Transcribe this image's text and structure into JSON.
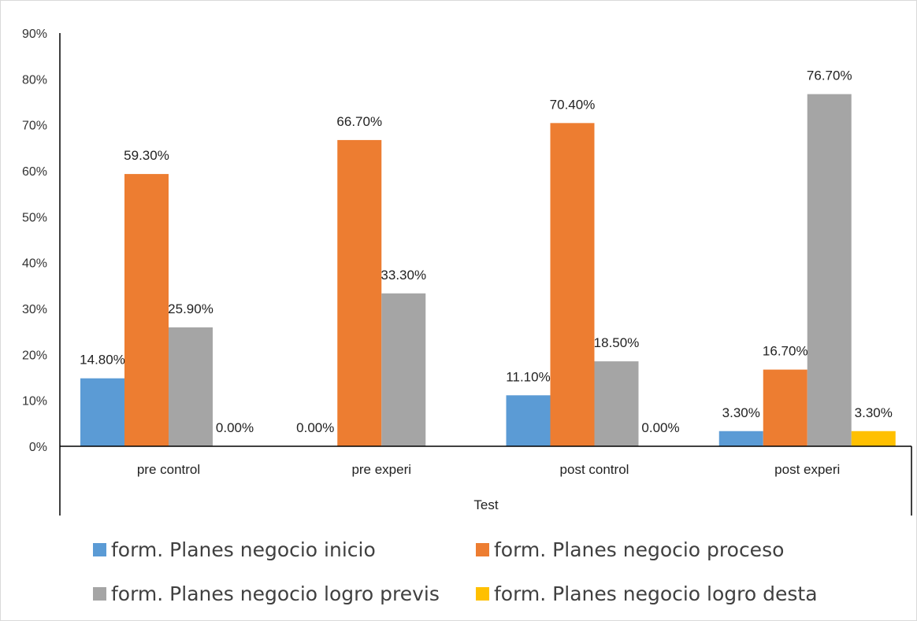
{
  "chart_data": {
    "type": "bar",
    "categories": [
      "pre control",
      "pre experi",
      "post control",
      "post experi"
    ],
    "series": [
      {
        "name": "form. Planes negocio inicio",
        "color": "#5b9bd5",
        "values": [
          14.8,
          0.0,
          11.1,
          3.3
        ],
        "labels": [
          "14.80%",
          "0.00%",
          "11.10%",
          "3.30%"
        ]
      },
      {
        "name": "form. Planes negocio proceso",
        "color": "#ed7d31",
        "values": [
          59.3,
          66.7,
          70.4,
          16.7
        ],
        "labels": [
          "59.30%",
          "66.70%",
          "70.40%",
          "16.70%"
        ]
      },
      {
        "name": "form. Planes negocio logro previs",
        "color": "#a5a5a5",
        "values": [
          25.9,
          33.3,
          18.5,
          76.7
        ],
        "labels": [
          "25.90%",
          "33.30%",
          "18.50%",
          "76.70%"
        ]
      },
      {
        "name": "form. Planes negocio logro desta",
        "color": "#ffc000",
        "values": [
          0.0,
          0.0,
          0.0,
          3.3
        ],
        "labels": [
          "0.00%",
          "",
          "0.00%",
          "3.30%"
        ]
      }
    ],
    "xlabel": "Test",
    "ylabel": "",
    "ylim": [
      0,
      90
    ],
    "yticks": [
      "0%",
      "10%",
      "20%",
      "30%",
      "40%",
      "50%",
      "60%",
      "70%",
      "80%",
      "90%"
    ],
    "grid": false,
    "legend": "bottom"
  }
}
